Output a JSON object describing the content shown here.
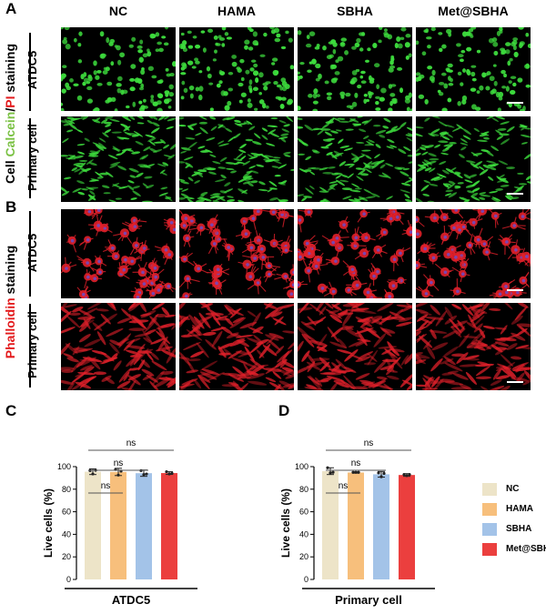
{
  "panels": {
    "a": "A",
    "b": "B",
    "c": "C",
    "d": "D"
  },
  "columns": [
    "NC",
    "HAMA",
    "SBHA",
    "Met@SBHA"
  ],
  "rows": {
    "atdc5": "ATDC5",
    "primary": "Primary cell"
  },
  "staining": {
    "a_prefix": "Cell ",
    "a_calcein": "Calcein",
    "a_slash": "/",
    "a_pi": "PI",
    "a_suffix": " staining",
    "b_phalloidin": "Phalloidin",
    "b_suffix": " staining"
  },
  "colors": {
    "calcein": "#7ac143",
    "pi": "#e31a1c",
    "phalloidin": "#e31a1c",
    "cell_green": "#3ddc3d",
    "cell_red": "#e0202a",
    "nucleus": "#6a4cc8"
  },
  "chart_data": [
    {
      "type": "bar",
      "panel": "C",
      "categories": [
        "NC",
        "HAMA",
        "SBHA",
        "Met@SBHA"
      ],
      "values": [
        95.5,
        95.3,
        94.2,
        94.3
      ],
      "errors": [
        2.5,
        3.2,
        2.8,
        1.2
      ],
      "points": [
        [
          96.5,
          93.5,
          96.8
        ],
        [
          97.5,
          92.5,
          96.0
        ],
        [
          96.5,
          93.0,
          93.5
        ],
        [
          95.5,
          93.5,
          94.0
        ]
      ],
      "ylabel": "Live cells (%)",
      "xlabel": "ATDC5",
      "ylim": [
        0,
        100
      ],
      "yticks": [
        0,
        20,
        40,
        60,
        80,
        100
      ],
      "colors": [
        "#ede4c8",
        "#f7bf7c",
        "#a3c3e8",
        "#eb3f3e"
      ],
      "significance": [
        {
          "from": 0,
          "to": 1,
          "label": "ns"
        },
        {
          "from": 0,
          "to": 2,
          "label": "ns"
        },
        {
          "from": 0,
          "to": 3,
          "label": "ns"
        }
      ]
    },
    {
      "type": "bar",
      "panel": "D",
      "categories": [
        "NC",
        "HAMA",
        "SBHA",
        "Met@SBHA"
      ],
      "values": [
        96.0,
        94.8,
        93.2,
        92.6
      ],
      "errors": [
        3.0,
        0.6,
        2.5,
        1.2
      ],
      "points": [
        [
          99.0,
          94.5,
          95.0
        ],
        [
          95.0,
          95.0,
          95.0
        ],
        [
          94.5,
          91.0,
          94.0
        ],
        [
          93.0,
          92.0,
          93.0
        ]
      ],
      "ylabel": "Live cells (%)",
      "xlabel": "Primary cell",
      "ylim": [
        0,
        100
      ],
      "yticks": [
        0,
        20,
        40,
        60,
        80,
        100
      ],
      "colors": [
        "#ede4c8",
        "#f7bf7c",
        "#a3c3e8",
        "#eb3f3e"
      ],
      "significance": [
        {
          "from": 0,
          "to": 1,
          "label": "ns"
        },
        {
          "from": 0,
          "to": 2,
          "label": "ns"
        },
        {
          "from": 0,
          "to": 3,
          "label": "ns"
        }
      ]
    }
  ],
  "legend": [
    {
      "label": "NC",
      "color": "#ede4c8"
    },
    {
      "label": "HAMA",
      "color": "#f7bf7c"
    },
    {
      "label": "SBHA",
      "color": "#a3c3e8"
    },
    {
      "label": "Met@SBHA",
      "color": "#eb3f3e"
    }
  ]
}
